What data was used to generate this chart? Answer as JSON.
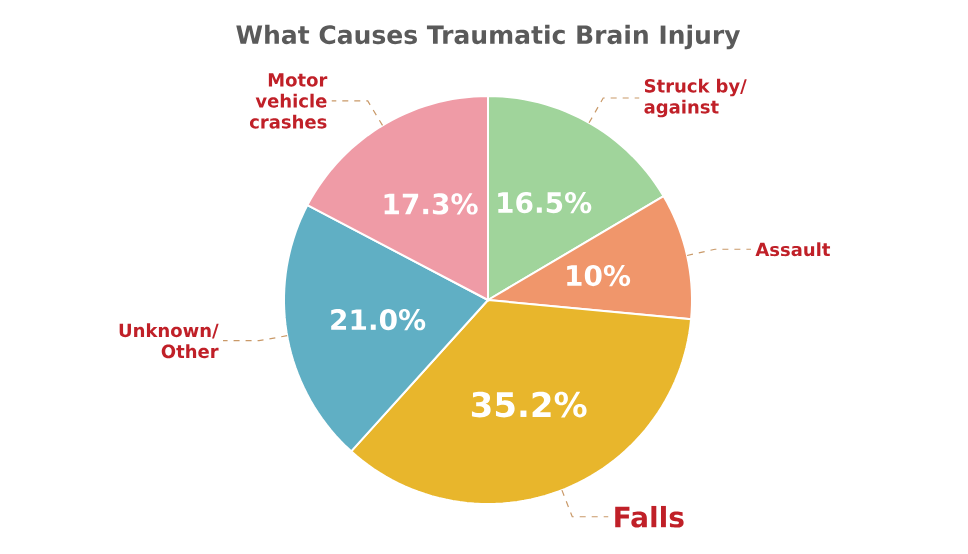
{
  "chart_data": {
    "type": "pie",
    "title": "What Causes Traumatic Brain Injury",
    "categories": [
      "Struck by/ against",
      "Assault",
      "Falls",
      "Unknown/ Other",
      "Motor vehicle crashes"
    ],
    "values": [
      16.5,
      10,
      35.2,
      21.0,
      17.3
    ],
    "colors": [
      "#a0d49b",
      "#f0966b",
      "#e8b62c",
      "#60afc4",
      "#ef9ba6"
    ],
    "value_labels": [
      "16.5%",
      "10%",
      "35.2%",
      "21.0%",
      "17.3%"
    ]
  }
}
